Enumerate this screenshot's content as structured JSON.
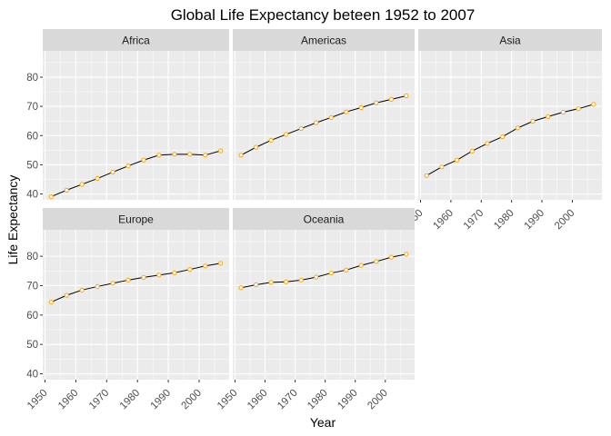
{
  "chart_data": {
    "type": "line",
    "title": "Global Life Expectancy beteen 1952 to 2007",
    "xlabel": "Year",
    "ylabel": "Life Expectancy",
    "xlim": [
      1949.25,
      2009.75
    ],
    "ylim": [
      38,
      89
    ],
    "x_ticks": [
      1950,
      1960,
      1970,
      1980,
      1990,
      2000
    ],
    "y_ticks": [
      40,
      50,
      60,
      70,
      80
    ],
    "grid": true,
    "colors": {
      "panel_bg": "#ebebeb",
      "strip_bg": "#d9d9d9",
      "grid": "#ffffff",
      "line": "#000000",
      "point_stroke": "#ffa500",
      "point_fill": "#ffffff"
    },
    "x": [
      1952,
      1957,
      1962,
      1967,
      1972,
      1977,
      1982,
      1987,
      1992,
      1997,
      2002,
      2007
    ],
    "panels": [
      {
        "name": "Africa",
        "values": [
          39.1,
          41.3,
          43.3,
          45.3,
          47.5,
          49.6,
          51.6,
          53.3,
          53.6,
          53.6,
          53.3,
          54.8
        ]
      },
      {
        "name": "Americas",
        "values": [
          53.3,
          56.0,
          58.4,
          60.4,
          62.4,
          64.4,
          66.2,
          68.1,
          69.6,
          71.2,
          72.4,
          73.6
        ]
      },
      {
        "name": "Asia",
        "values": [
          46.3,
          49.3,
          51.6,
          54.7,
          57.3,
          59.6,
          62.6,
          64.9,
          66.5,
          68.0,
          69.2,
          70.7
        ]
      },
      {
        "name": "Europe",
        "values": [
          64.4,
          66.7,
          68.5,
          69.7,
          70.8,
          71.9,
          72.8,
          73.6,
          74.4,
          75.5,
          76.7,
          77.6
        ]
      },
      {
        "name": "Oceania",
        "values": [
          69.3,
          70.3,
          71.1,
          71.3,
          71.9,
          72.9,
          74.3,
          75.3,
          76.9,
          78.2,
          79.7,
          80.7
        ]
      }
    ]
  }
}
